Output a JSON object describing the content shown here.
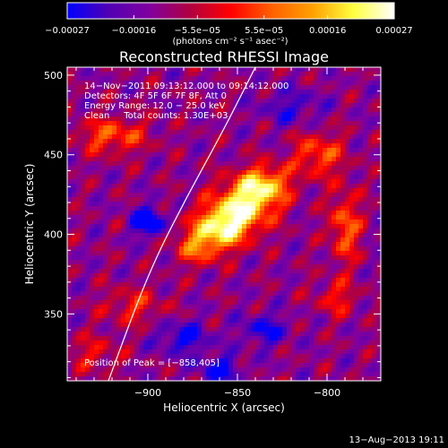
{
  "chart_data": {
    "type": "heatmap",
    "title": "Reconstructed RHESSI Image",
    "xlabel": "Heliocentric X (arcsec)",
    "ylabel": "Heliocentric Y (arcsec)",
    "xlim": [
      -945,
      -770
    ],
    "ylim": [
      308,
      505
    ],
    "xticks": [
      -900,
      -850,
      -800
    ],
    "yticks": [
      350,
      400,
      450,
      500
    ],
    "x_tick_labels": [
      "−900",
      "−850",
      "−800"
    ],
    "y_tick_labels": [
      "350",
      "400",
      "450",
      "500"
    ],
    "colorbar": {
      "range": [
        -0.00027,
        0.00027
      ],
      "ticks": [
        -0.00027,
        -0.00016,
        -5.5e-05,
        5.5e-05,
        0.00016,
        0.00027
      ],
      "tick_labels": [
        "−0.00027",
        "−0.00016",
        "−5.5e−05",
        "5.5e−05",
        "0.00016",
        "0.00027"
      ],
      "label": "(photons cm⁻² s⁻¹ asec⁻²)",
      "colors": [
        "#0000ff",
        "#5000b4",
        "#8000a0",
        "#b00040",
        "#ff0000",
        "#ff6000",
        "#ffa000",
        "#ffff40",
        "#ffffff"
      ]
    },
    "annotations": [
      "14−Nov−2011 09:13:12.000 to 09:14:12.000",
      "Detectors: 4F 5F 6F 7F 8F, Att 0",
      "Energy Range: 12.0 − 25.0 keV",
      "Clean     Total counts: 1.30E+03"
    ],
    "peak_label": "Position of Peak = [−858,405]",
    "peak_position": [
      -858,
      405
    ],
    "sources": [
      {
        "x": -858,
        "y": 405,
        "amp": 1.0,
        "sx": 11,
        "sy": 9
      },
      {
        "x": -845,
        "y": 420,
        "amp": 0.85,
        "sx": 12,
        "sy": 10
      },
      {
        "x": -835,
        "y": 432,
        "amp": 0.7,
        "sx": 10,
        "sy": 8
      },
      {
        "x": -872,
        "y": 392,
        "amp": 0.55,
        "sx": 9,
        "sy": 8
      },
      {
        "x": -920,
        "y": 462,
        "amp": 0.5,
        "sx": 14,
        "sy": 8
      },
      {
        "x": -805,
        "y": 450,
        "amp": 0.5,
        "sx": 10,
        "sy": 10
      },
      {
        "x": -790,
        "y": 405,
        "amp": 0.55,
        "sx": 6,
        "sy": 16
      },
      {
        "x": -795,
        "y": 360,
        "amp": 0.35,
        "sx": 8,
        "sy": 8
      },
      {
        "x": -908,
        "y": 355,
        "amp": 0.35,
        "sx": 12,
        "sy": 8
      },
      {
        "x": -930,
        "y": 325,
        "amp": 0.3,
        "sx": 10,
        "sy": 8
      },
      {
        "x": -900,
        "y": 408,
        "amp": -0.75,
        "sx": 6,
        "sy": 6
      },
      {
        "x": -880,
        "y": 335,
        "amp": -0.45,
        "sx": 10,
        "sy": 7
      },
      {
        "x": -860,
        "y": 315,
        "amp": -0.5,
        "sx": 8,
        "sy": 6
      },
      {
        "x": -835,
        "y": 340,
        "amp": -0.4,
        "sx": 9,
        "sy": 7
      },
      {
        "x": -820,
        "y": 480,
        "amp": -0.3,
        "sx": 12,
        "sy": 8
      }
    ],
    "limb_points": [
      [
        -922,
        308
      ],
      [
        -900,
        375
      ],
      [
        -880,
        420
      ],
      [
        -858,
        465
      ],
      [
        -840,
        505
      ]
    ],
    "grid": false
  },
  "footer": {
    "date": "13−Aug−2013 19:11"
  }
}
